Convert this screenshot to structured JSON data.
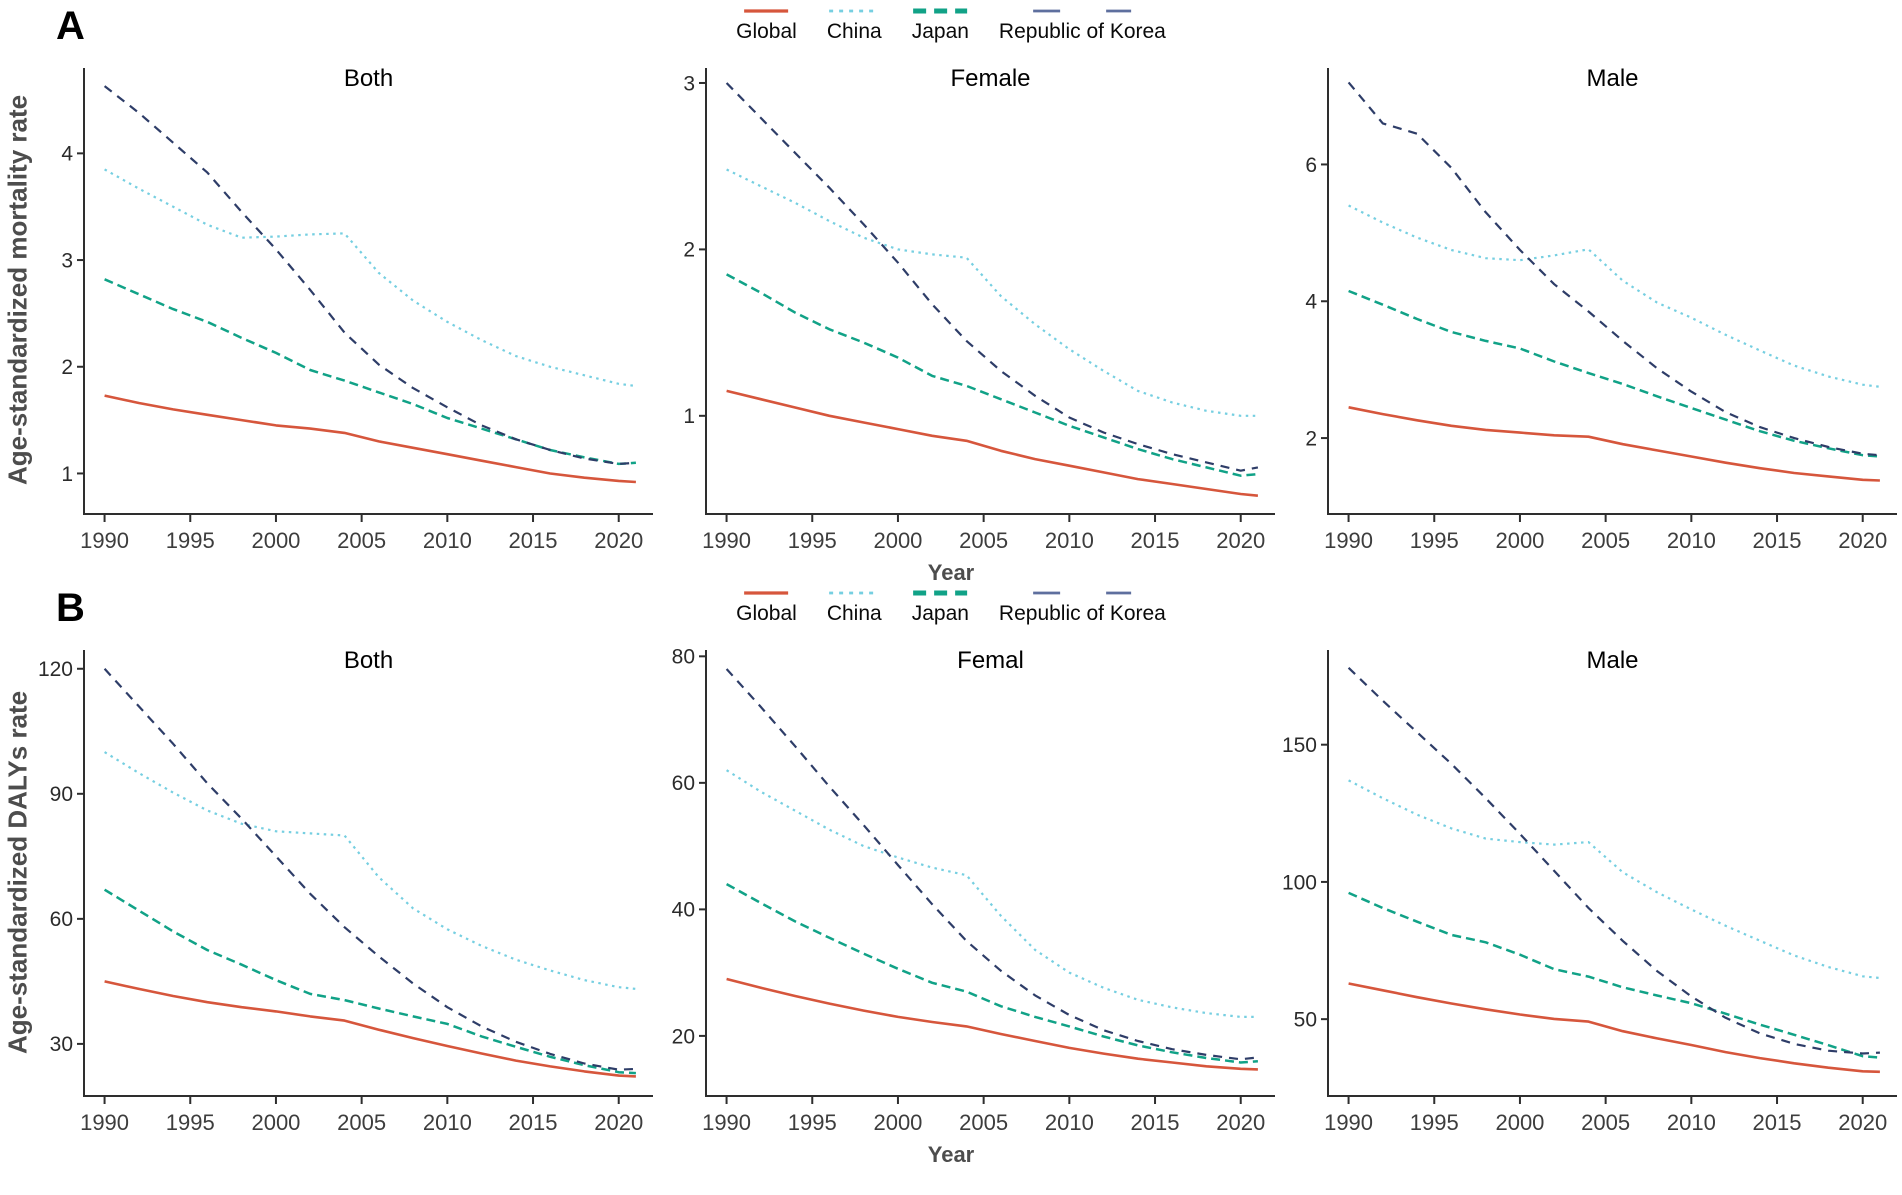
{
  "panels": [
    {
      "id": "A",
      "label": "A",
      "ylabel": "Age-standardized mortality rate",
      "xlabel": "Year",
      "legend": [
        {
          "key": "global",
          "label": "Global"
        },
        {
          "key": "china",
          "label": "China"
        },
        {
          "key": "japan",
          "label": "Japan"
        },
        {
          "key": "korea",
          "label": "Republic of Korea"
        }
      ]
    },
    {
      "id": "B",
      "label": "B",
      "ylabel": "Age-standardized DALYs rate",
      "xlabel": "Year",
      "legend": [
        {
          "key": "global",
          "label": "Global"
        },
        {
          "key": "china",
          "label": "China"
        },
        {
          "key": "japan",
          "label": "Japan"
        },
        {
          "key": "korea",
          "label": "Republic of Korea"
        }
      ]
    }
  ],
  "colors": {
    "global": "#d6563c",
    "china": "#76cfe1",
    "japan": "#11a287",
    "korea": "#2e3d68",
    "korea_legend": "#5e6f9e",
    "axis": "#2e2e2e",
    "tick_text": "#2b2b2b",
    "title_text": "#000000"
  },
  "chart_data": [
    {
      "type": "line",
      "panel": "A",
      "title": "Both",
      "x": [
        1990,
        1992,
        1994,
        1996,
        1998,
        2000,
        2002,
        2004,
        2006,
        2008,
        2010,
        2012,
        2014,
        2016,
        2018,
        2020,
        2021
      ],
      "xticks": [
        1990,
        1995,
        2000,
        2005,
        2010,
        2015,
        2020
      ],
      "xlim": [
        1988.8,
        2022
      ],
      "ylim": [
        0.62,
        4.8
      ],
      "yticks": [
        1,
        2,
        3,
        4
      ],
      "grid": false,
      "series": [
        {
          "key": "global",
          "name": "Global",
          "values": [
            1.73,
            1.66,
            1.6,
            1.55,
            1.5,
            1.45,
            1.42,
            1.38,
            1.3,
            1.24,
            1.18,
            1.12,
            1.06,
            1.0,
            0.96,
            0.93,
            0.92
          ]
        },
        {
          "key": "china",
          "name": "China",
          "values": [
            3.85,
            3.67,
            3.5,
            3.33,
            3.21,
            3.22,
            3.24,
            3.25,
            2.88,
            2.62,
            2.42,
            2.25,
            2.1,
            2.0,
            1.92,
            1.84,
            1.82
          ]
        },
        {
          "key": "japan",
          "name": "Japan",
          "values": [
            2.82,
            2.68,
            2.54,
            2.42,
            2.27,
            2.13,
            1.97,
            1.87,
            1.76,
            1.65,
            1.52,
            1.42,
            1.32,
            1.22,
            1.15,
            1.09,
            1.1
          ]
        },
        {
          "key": "korea",
          "name": "Republic of Korea",
          "values": [
            4.63,
            4.38,
            4.1,
            3.82,
            3.45,
            3.1,
            2.72,
            2.32,
            2.02,
            1.8,
            1.62,
            1.45,
            1.32,
            1.22,
            1.14,
            1.09,
            1.1
          ]
        }
      ]
    },
    {
      "type": "line",
      "panel": "A",
      "title": "Female",
      "x": [
        1990,
        1992,
        1994,
        1996,
        1998,
        2000,
        2002,
        2004,
        2006,
        2008,
        2010,
        2012,
        2014,
        2016,
        2018,
        2020,
        2021
      ],
      "xticks": [
        1990,
        1995,
        2000,
        2005,
        2010,
        2015,
        2020
      ],
      "xlim": [
        1988.8,
        2022
      ],
      "ylim": [
        0.41,
        3.09
      ],
      "yticks": [
        1,
        2,
        3
      ],
      "grid": false,
      "series": [
        {
          "key": "global",
          "name": "Global",
          "values": [
            1.15,
            1.1,
            1.05,
            1.0,
            0.96,
            0.92,
            0.88,
            0.85,
            0.79,
            0.74,
            0.7,
            0.66,
            0.62,
            0.59,
            0.56,
            0.53,
            0.52
          ]
        },
        {
          "key": "china",
          "name": "China",
          "values": [
            2.48,
            2.38,
            2.28,
            2.17,
            2.07,
            2.0,
            1.97,
            1.95,
            1.72,
            1.55,
            1.4,
            1.27,
            1.15,
            1.08,
            1.03,
            1.0,
            1.0
          ]
        },
        {
          "key": "japan",
          "name": "Japan",
          "values": [
            1.85,
            1.74,
            1.62,
            1.52,
            1.44,
            1.35,
            1.24,
            1.18,
            1.1,
            1.02,
            0.94,
            0.87,
            0.8,
            0.74,
            0.69,
            0.64,
            0.65
          ]
        },
        {
          "key": "korea",
          "name": "Republic of Korea",
          "values": [
            3.0,
            2.79,
            2.58,
            2.37,
            2.15,
            1.92,
            1.67,
            1.45,
            1.27,
            1.12,
            0.99,
            0.9,
            0.83,
            0.77,
            0.72,
            0.67,
            0.69
          ]
        }
      ]
    },
    {
      "type": "line",
      "panel": "A",
      "title": "Male",
      "x": [
        1990,
        1992,
        1994,
        1996,
        1998,
        2000,
        2002,
        2004,
        2006,
        2008,
        2010,
        2012,
        2014,
        2016,
        2018,
        2020,
        2021
      ],
      "xticks": [
        1990,
        1995,
        2000,
        2005,
        2010,
        2015,
        2020
      ],
      "xlim": [
        1988.8,
        2022
      ],
      "ylim": [
        0.89,
        7.41
      ],
      "yticks": [
        2,
        4,
        6
      ],
      "grid": false,
      "series": [
        {
          "key": "global",
          "name": "Global",
          "values": [
            2.45,
            2.35,
            2.26,
            2.18,
            2.12,
            2.08,
            2.04,
            2.02,
            1.91,
            1.82,
            1.73,
            1.64,
            1.56,
            1.49,
            1.44,
            1.39,
            1.38
          ]
        },
        {
          "key": "china",
          "name": "China",
          "values": [
            5.4,
            5.15,
            4.93,
            4.75,
            4.63,
            4.6,
            4.67,
            4.76,
            4.3,
            3.98,
            3.76,
            3.51,
            3.28,
            3.06,
            2.9,
            2.78,
            2.75
          ]
        },
        {
          "key": "japan",
          "name": "Japan",
          "values": [
            4.15,
            3.95,
            3.74,
            3.55,
            3.42,
            3.31,
            3.12,
            2.95,
            2.79,
            2.61,
            2.44,
            2.27,
            2.1,
            1.96,
            1.85,
            1.75,
            1.73
          ]
        },
        {
          "key": "korea",
          "name": "Republic of Korea",
          "values": [
            7.2,
            6.6,
            6.45,
            5.95,
            5.3,
            4.75,
            4.25,
            3.85,
            3.42,
            3.02,
            2.68,
            2.38,
            2.16,
            2.0,
            1.87,
            1.77,
            1.75
          ]
        }
      ]
    },
    {
      "type": "line",
      "panel": "B",
      "title": "Both",
      "x": [
        1990,
        1992,
        1994,
        1996,
        1998,
        2000,
        2002,
        2004,
        2006,
        2008,
        2010,
        2012,
        2014,
        2016,
        2018,
        2020,
        2021
      ],
      "xticks": [
        1990,
        1995,
        2000,
        2005,
        2010,
        2015,
        2020
      ],
      "xlim": [
        1988.8,
        2022
      ],
      "ylim": [
        17.5,
        124.5
      ],
      "yticks": [
        30,
        60,
        90,
        120
      ],
      "grid": false,
      "series": [
        {
          "key": "global",
          "name": "Global",
          "values": [
            45,
            43.2,
            41.5,
            40,
            38.8,
            37.8,
            36.6,
            35.6,
            33.4,
            31.4,
            29.5,
            27.7,
            26,
            24.6,
            23.4,
            22.4,
            22.2
          ]
        },
        {
          "key": "china",
          "name": "China",
          "values": [
            100,
            95,
            90.3,
            86,
            82.8,
            81,
            80.5,
            80,
            70,
            62.5,
            57.5,
            53.5,
            50.2,
            47.6,
            45.3,
            43.6,
            43.2
          ]
        },
        {
          "key": "japan",
          "name": "Japan",
          "values": [
            67,
            62,
            57,
            52.5,
            49,
            45.3,
            42,
            40.5,
            38.5,
            36.6,
            34.8,
            31.8,
            29.3,
            26.9,
            24.9,
            23.2,
            23
          ]
        },
        {
          "key": "korea",
          "name": "Republic of Korea",
          "values": [
            120,
            111,
            102,
            92.5,
            84,
            75,
            66,
            58,
            51,
            44.5,
            38.8,
            34.2,
            30.5,
            27.6,
            25.3,
            23.8,
            24
          ]
        }
      ]
    },
    {
      "type": "line",
      "panel": "B",
      "title": "Femal",
      "x": [
        1990,
        1992,
        1994,
        1996,
        1998,
        2000,
        2002,
        2004,
        2006,
        2008,
        2010,
        2012,
        2014,
        2016,
        2018,
        2020,
        2021
      ],
      "xticks": [
        1990,
        1995,
        2000,
        2005,
        2010,
        2015,
        2020
      ],
      "xlim": [
        1988.8,
        2022
      ],
      "ylim": [
        10.5,
        81
      ],
      "yticks": [
        20,
        40,
        60,
        80
      ],
      "grid": false,
      "series": [
        {
          "key": "global",
          "name": "Global",
          "values": [
            29,
            27.6,
            26.3,
            25.1,
            24,
            23,
            22.2,
            21.5,
            20.3,
            19.2,
            18.1,
            17.2,
            16.4,
            15.8,
            15.2,
            14.8,
            14.7
          ]
        },
        {
          "key": "china",
          "name": "China",
          "values": [
            62,
            58.6,
            55.6,
            52.6,
            50,
            48.2,
            46.6,
            45.4,
            39,
            33.6,
            30,
            27.6,
            25.7,
            24.5,
            23.6,
            23,
            23
          ]
        },
        {
          "key": "japan",
          "name": "Japan",
          "values": [
            44,
            41,
            38.1,
            35.5,
            33,
            30.6,
            28.4,
            27,
            24.7,
            23,
            21.5,
            19.9,
            18.5,
            17.4,
            16.5,
            15.8,
            16
          ]
        },
        {
          "key": "korea",
          "name": "Republic of Korea",
          "values": [
            78,
            72,
            65.8,
            59.4,
            53.3,
            47,
            40.8,
            35,
            30.3,
            26.4,
            23.3,
            20.9,
            19.2,
            17.9,
            17,
            16.3,
            16.6
          ]
        }
      ]
    },
    {
      "type": "line",
      "panel": "B",
      "title": "Male",
      "x": [
        1990,
        1992,
        1994,
        1996,
        1998,
        2000,
        2002,
        2004,
        2006,
        2008,
        2010,
        2012,
        2014,
        2016,
        2018,
        2020,
        2021
      ],
      "xticks": [
        1990,
        1995,
        2000,
        2005,
        2010,
        2015,
        2020
      ],
      "xlim": [
        1988.8,
        2022
      ],
      "ylim": [
        22,
        184.5
      ],
      "yticks": [
        50,
        100,
        150
      ],
      "grid": false,
      "series": [
        {
          "key": "global",
          "name": "Global",
          "values": [
            63,
            60.5,
            58,
            55.7,
            53.6,
            51.7,
            50.1,
            49.1,
            45.6,
            43,
            40.6,
            38,
            35.8,
            33.9,
            32.3,
            31,
            30.8
          ]
        },
        {
          "key": "china",
          "name": "China",
          "values": [
            137,
            130.5,
            124.5,
            119.5,
            115.8,
            114.5,
            113.6,
            114.5,
            103.5,
            96.2,
            90,
            84,
            78.6,
            73.2,
            69,
            65.6,
            65
          ]
        },
        {
          "key": "japan",
          "name": "Japan",
          "values": [
            96,
            90.5,
            85.5,
            80.7,
            78,
            73.5,
            68.2,
            65.5,
            61.6,
            58.6,
            55.8,
            52,
            48,
            44.3,
            40.5,
            36.5,
            36
          ]
        },
        {
          "key": "korea",
          "name": "Republic of Korea",
          "values": [
            178,
            166,
            154.5,
            143,
            130.5,
            117.5,
            104,
            90.5,
            78.5,
            67.5,
            58.3,
            50.5,
            44.8,
            41,
            38.5,
            37.5,
            37.8
          ]
        }
      ]
    }
  ]
}
